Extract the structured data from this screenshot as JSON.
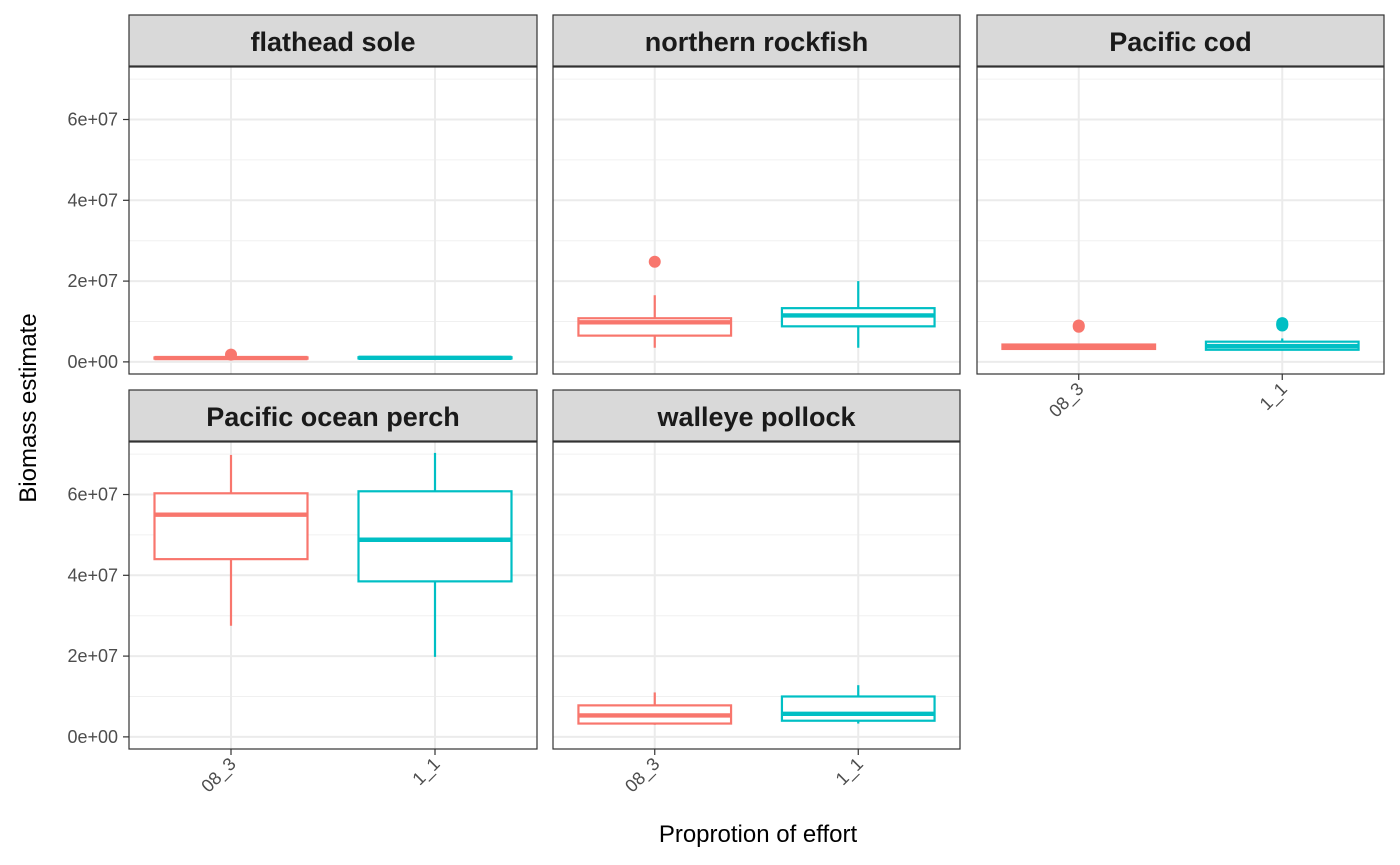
{
  "chart_data": {
    "type": "boxplot",
    "facet_layout": "3 columns x 2 rows",
    "xlabel": "Proprotion of effort",
    "ylabel": "Biomass estimate",
    "ylim": [
      -3000000,
      73000000
    ],
    "y_ticks": [
      0,
      20000000,
      40000000,
      60000000
    ],
    "y_tick_labels": [
      "0e+00",
      "2e+07",
      "4e+07",
      "6e+07"
    ],
    "categories": [
      "08_3",
      "1_1"
    ],
    "colors": {
      "08_3": "#F8766D",
      "1_1": "#00BFC4"
    },
    "grid": true,
    "legend": "none",
    "panels": [
      {
        "title": "flathead sole",
        "boxes": [
          {
            "category": "08_3",
            "whisker_low": 500000,
            "q1": 800000,
            "median": 950000,
            "q3": 1100000,
            "whisker_high": 1300000,
            "outliers": [
              1800000
            ]
          },
          {
            "category": "1_1",
            "whisker_low": 700000,
            "q1": 850000,
            "median": 1000000,
            "q3": 1150000,
            "whisker_high": 1300000,
            "outliers": []
          }
        ]
      },
      {
        "title": "northern rockfish",
        "boxes": [
          {
            "category": "08_3",
            "whisker_low": 3500000,
            "q1": 6500000,
            "median": 9800000,
            "q3": 10800000,
            "whisker_high": 16500000,
            "outliers": [
              24800000
            ]
          },
          {
            "category": "1_1",
            "whisker_low": 3500000,
            "q1": 8800000,
            "median": 11500000,
            "q3": 13300000,
            "whisker_high": 20000000,
            "outliers": []
          }
        ]
      },
      {
        "title": "Pacific cod",
        "boxes": [
          {
            "category": "08_3",
            "whisker_low": 3000000,
            "q1": 3200000,
            "median": 3800000,
            "q3": 4300000,
            "whisker_high": 4500000,
            "outliers": [
              8700000,
              9000000
            ]
          },
          {
            "category": "1_1",
            "whisker_low": 2800000,
            "q1": 3000000,
            "median": 3900000,
            "q3": 5000000,
            "whisker_high": 5800000,
            "outliers": [
              9000000,
              9300000,
              9600000
            ]
          }
        ]
      },
      {
        "title": "Pacific ocean perch",
        "boxes": [
          {
            "category": "08_3",
            "whisker_low": 27500000,
            "q1": 44000000,
            "median": 55000000,
            "q3": 60300000,
            "whisker_high": 69800000,
            "outliers": []
          },
          {
            "category": "1_1",
            "whisker_low": 19800000,
            "q1": 38500000,
            "median": 48800000,
            "q3": 60800000,
            "whisker_high": 70300000,
            "outliers": []
          }
        ]
      },
      {
        "title": "walleye pollock",
        "boxes": [
          {
            "category": "08_3",
            "whisker_low": 3000000,
            "q1": 3300000,
            "median": 5300000,
            "q3": 7800000,
            "whisker_high": 11000000,
            "outliers": []
          },
          {
            "category": "1_1",
            "whisker_low": 3300000,
            "q1": 4000000,
            "median": 5700000,
            "q3": 10000000,
            "whisker_high": 12800000,
            "outliers": []
          }
        ]
      }
    ]
  }
}
